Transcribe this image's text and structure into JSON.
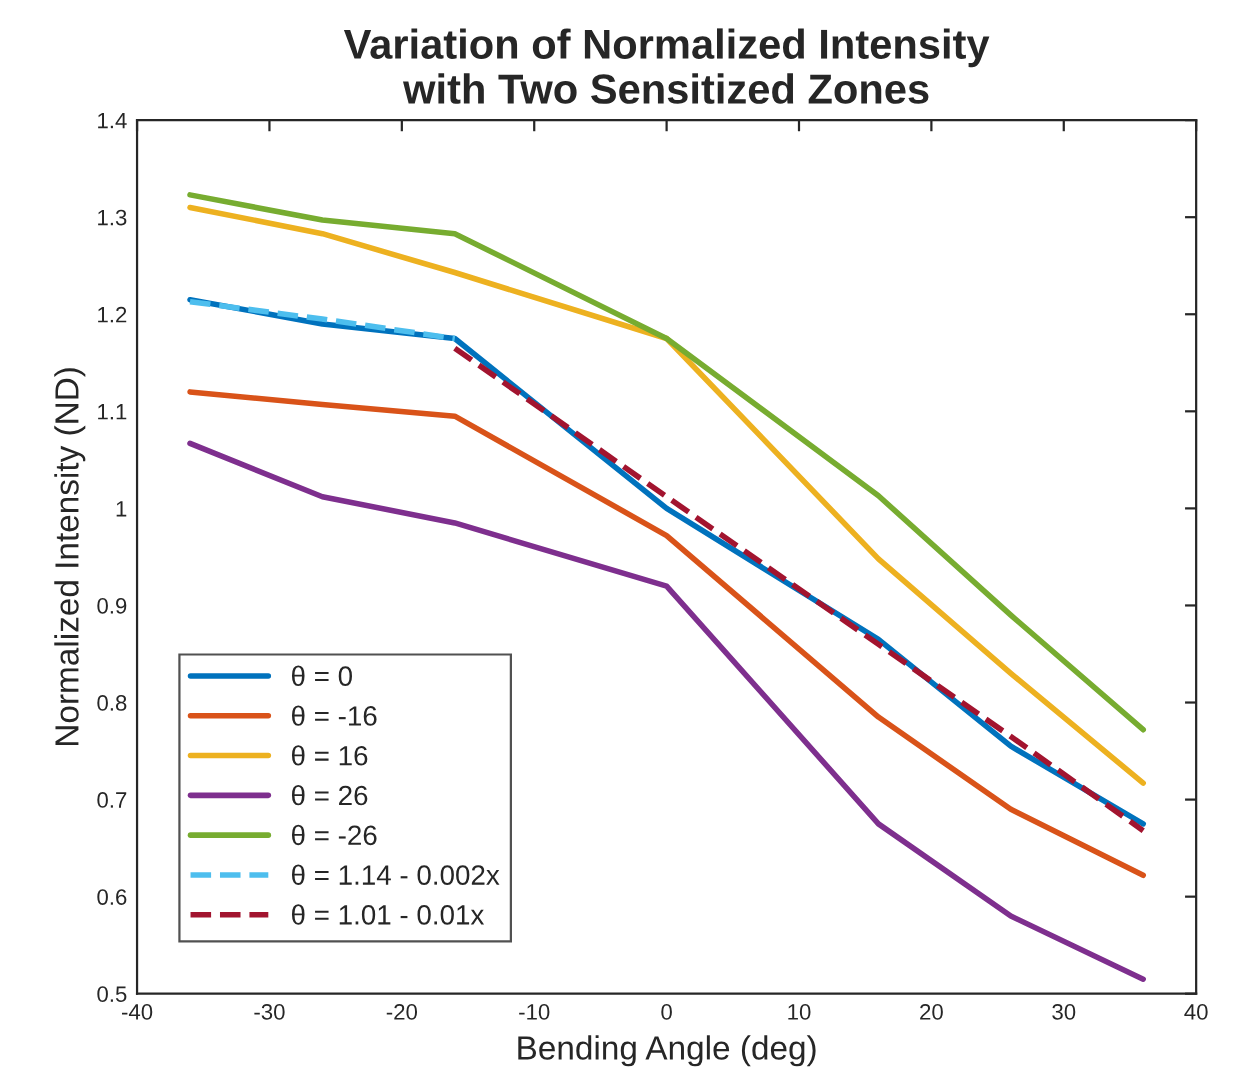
{
  "chart_data": {
    "type": "line",
    "title": "Variation of Normalized Intensity\nwith Two Sensitized Zones",
    "xlabel": "Bending Angle (deg)",
    "ylabel": "Normalized Intensity (ND)",
    "x": [
      -36,
      -26,
      -16,
      0,
      16,
      26,
      36
    ],
    "series": [
      {
        "name": "θ = 0",
        "color": "#0072bd",
        "values": [
          1.215,
          1.19,
          1.175,
          1.0,
          0.865,
          0.755,
          0.675
        ]
      },
      {
        "name": "θ = -16",
        "color": "#d95319",
        "values": [
          1.12,
          1.107,
          1.095,
          0.972,
          0.785,
          0.69,
          0.622
        ]
      },
      {
        "name": "θ = 16",
        "color": "#edb120",
        "values": [
          1.31,
          1.283,
          1.243,
          1.175,
          0.948,
          0.83,
          0.717
        ]
      },
      {
        "name": "θ = 26",
        "color": "#7e2f8e",
        "values": [
          1.067,
          1.012,
          0.985,
          0.92,
          0.675,
          0.58,
          0.515
        ]
      },
      {
        "name": "θ = -26",
        "color": "#77ac30",
        "values": [
          1.323,
          1.297,
          1.283,
          1.175,
          1.013,
          0.89,
          0.772
        ]
      },
      {
        "name": "θ = 1.14 - 0.002x",
        "color": "#4dbeee",
        "line_style": "dashed",
        "x": [
          -36,
          -26,
          -16
        ],
        "values": [
          1.213,
          1.195,
          1.175
        ]
      },
      {
        "name": "θ = 1.01 - 0.01x",
        "color": "#a2142f",
        "line_style": "dashed",
        "x": [
          -16,
          0,
          16,
          26,
          36
        ],
        "values": [
          1.165,
          1.012,
          0.86,
          0.765,
          0.668
        ]
      }
    ],
    "xlim": [
      -40,
      40
    ],
    "xticks": [
      -40,
      -30,
      -20,
      -10,
      0,
      10,
      20,
      30,
      40
    ],
    "ylim": [
      0.5,
      1.4
    ],
    "yticks": [
      0.5,
      0.6,
      0.7,
      0.8,
      0.9,
      1,
      1.1,
      1.2,
      1.3,
      1.4
    ],
    "grid": false,
    "legend": "bottom left",
    "marker": "none"
  }
}
